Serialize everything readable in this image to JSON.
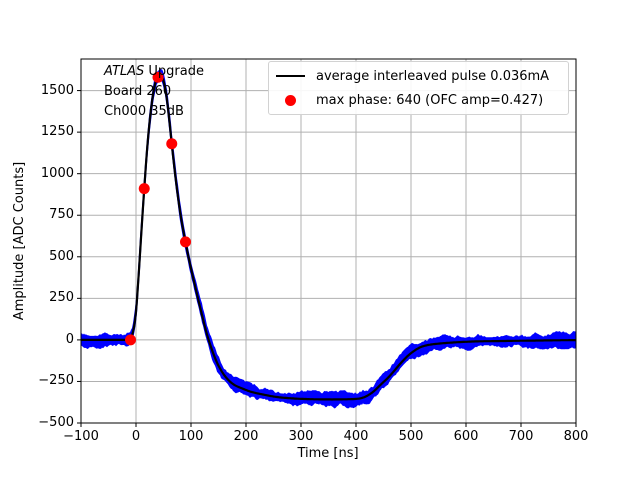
{
  "figure": {
    "background": "#ffffff",
    "annotation": {
      "line1_italic": "ATLAS",
      "line1_rest": " Upgrade",
      "line2": "Board 260",
      "line3": "Ch000 35dB"
    },
    "legend": {
      "position": "upper right",
      "entries": [
        {
          "marker": "line",
          "color": "#000000",
          "label": "average interleaved pulse 0.036mA"
        },
        {
          "marker": "dot",
          "color": "#ff0000",
          "label": "max phase: 640 (OFC amp=0.427)"
        }
      ]
    }
  },
  "chart_data": {
    "type": "line",
    "title": "",
    "xlabel": "Time [ns]",
    "ylabel": "Amplitude [ADC Counts]",
    "xlim": [
      -100,
      800
    ],
    "ylim": [
      -500,
      1690
    ],
    "xticks": [
      -100,
      0,
      100,
      200,
      300,
      400,
      500,
      600,
      700,
      800
    ],
    "yticks": [
      -500,
      -250,
      0,
      250,
      500,
      750,
      1000,
      1250,
      1500
    ],
    "grid": true,
    "legend_position": "upper right",
    "colors": {
      "noise_band": "#0000ff",
      "average_line": "#000000",
      "max_phase_marker": "#ff0000",
      "grid": "#b0b0b0",
      "legend_edge": "#d2d2d2"
    },
    "series": [
      {
        "name": "average interleaved pulse 0.036mA",
        "type": "line",
        "x": [
          -100,
          -60,
          -30,
          -20,
          -15,
          -10,
          -5,
          0,
          5,
          10,
          15,
          20,
          25,
          30,
          35,
          40,
          45,
          50,
          55,
          60,
          65,
          70,
          75,
          80,
          85,
          90,
          95,
          100,
          107,
          113,
          120,
          128,
          135,
          142,
          150,
          160,
          170,
          180,
          195,
          210,
          230,
          255,
          280,
          310,
          340,
          370,
          400,
          410,
          420,
          432,
          444,
          456,
          468,
          480,
          492,
          504,
          516,
          528,
          540,
          555,
          570,
          590,
          620,
          660,
          700,
          750,
          800
        ],
        "y": [
          0,
          0,
          0,
          0,
          2,
          10,
          55,
          170,
          400,
          660,
          910,
          1140,
          1320,
          1455,
          1545,
          1583,
          1592,
          1558,
          1475,
          1340,
          1180,
          1030,
          895,
          775,
          675,
          590,
          505,
          430,
          330,
          245,
          150,
          45,
          -30,
          -95,
          -155,
          -210,
          -248,
          -273,
          -295,
          -313,
          -328,
          -343,
          -351,
          -356,
          -358,
          -358,
          -355,
          -350,
          -337,
          -310,
          -272,
          -235,
          -192,
          -145,
          -103,
          -70,
          -46,
          -33,
          -26,
          -21,
          -17,
          -13,
          -9,
          -7,
          -5,
          -3,
          -1
        ]
      },
      {
        "name": "max phase: 640 (OFC amp=0.427)",
        "type": "scatter",
        "x": [
          -10,
          15,
          40,
          65,
          90
        ],
        "y": [
          0,
          910,
          1580,
          1180,
          590
        ]
      },
      {
        "name": "interleaved samples noise band",
        "type": "band",
        "amplitude_noise_counts": 38,
        "time_jitter_ns": 1.2
      }
    ]
  }
}
